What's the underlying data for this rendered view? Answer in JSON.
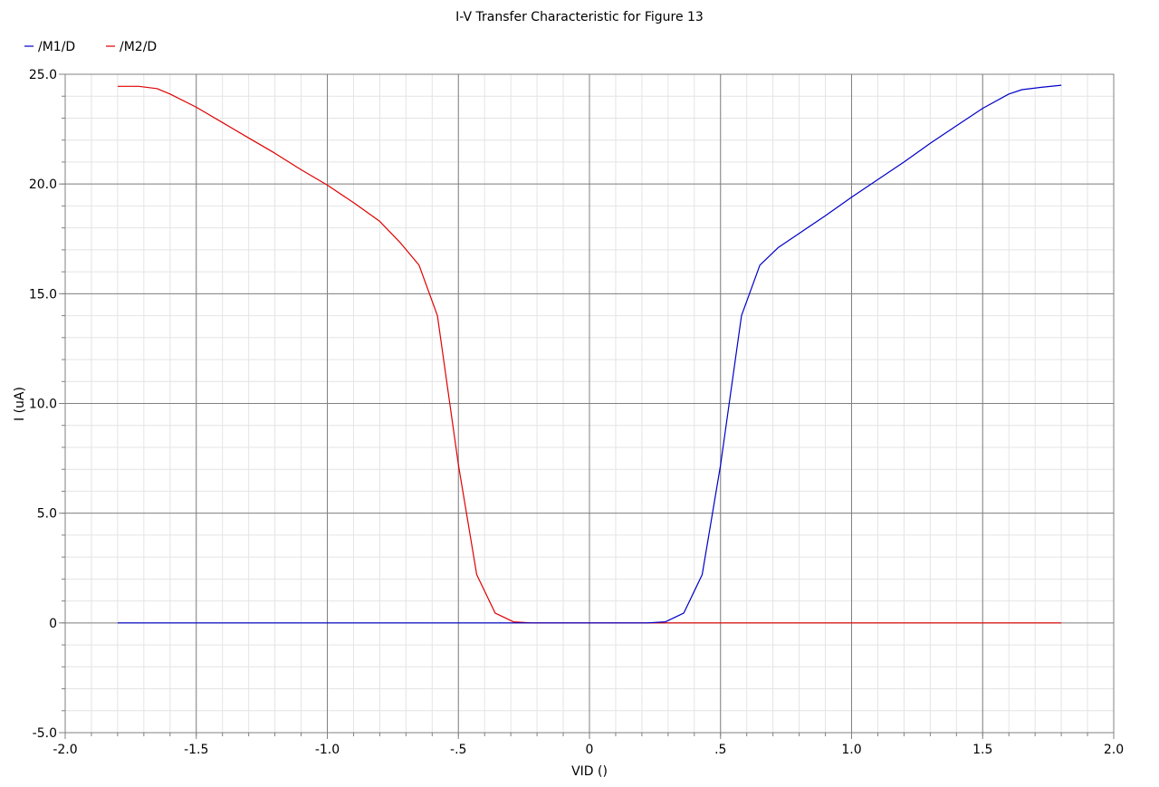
{
  "chart_data": {
    "type": "line",
    "title": "I-V Transfer Characteristic for Figure 13",
    "xlabel": "VID ()",
    "ylabel": "I (uA)",
    "xlim": [
      -2.0,
      2.0
    ],
    "ylim": [
      -5.0,
      25.0
    ],
    "x_ticks": [
      -2.0,
      -1.5,
      -1.0,
      -0.5,
      0,
      0.5,
      1.0,
      1.5,
      2.0
    ],
    "x_tick_labels": [
      "-2.0",
      "-1.5",
      "-1.0",
      "-.5",
      "0",
      ".5",
      "1.0",
      "1.5",
      "2.0"
    ],
    "y_ticks": [
      -5.0,
      0,
      5.0,
      10.0,
      15.0,
      20.0,
      25.0
    ],
    "y_tick_labels": [
      "-5.0",
      "0",
      "5.0",
      "10.0",
      "15.0",
      "20.0",
      "25.0"
    ],
    "grid": true,
    "legend_position": "top-left",
    "series": [
      {
        "name": "/M2/D",
        "color": "#e00000",
        "x": [
          -1.8,
          -1.72,
          -1.65,
          -1.6,
          -1.5,
          -1.4,
          -1.3,
          -1.2,
          -1.1,
          -1.0,
          -0.9,
          -0.8,
          -0.72,
          -0.65,
          -0.58,
          -0.5,
          -0.43,
          -0.36,
          -0.29,
          -0.22,
          -0.15,
          0,
          0.5,
          1.0,
          1.5,
          1.8
        ],
        "y": [
          24.45,
          24.45,
          24.35,
          24.1,
          23.5,
          22.8,
          22.1,
          21.4,
          20.65,
          19.95,
          19.15,
          18.3,
          17.3,
          16.3,
          14.0,
          7.2,
          2.2,
          0.45,
          0.05,
          0.0,
          0.0,
          0.0,
          0.0,
          0.0,
          0.0,
          0.0
        ]
      },
      {
        "name": "/M1/D",
        "color": "#0000c8",
        "x": [
          -1.8,
          -1.5,
          -1.0,
          -0.5,
          0,
          0.15,
          0.22,
          0.29,
          0.36,
          0.43,
          0.5,
          0.58,
          0.65,
          0.72,
          0.8,
          0.9,
          1.0,
          1.1,
          1.2,
          1.3,
          1.4,
          1.5,
          1.6,
          1.65,
          1.72,
          1.8
        ],
        "y": [
          0.0,
          0.0,
          0.0,
          0.0,
          0.0,
          0.0,
          0.0,
          0.05,
          0.45,
          2.2,
          7.2,
          14.0,
          16.3,
          17.1,
          17.75,
          18.55,
          19.4,
          20.2,
          21.0,
          21.85,
          22.65,
          23.45,
          24.1,
          24.3,
          24.4,
          24.5
        ]
      }
    ]
  }
}
